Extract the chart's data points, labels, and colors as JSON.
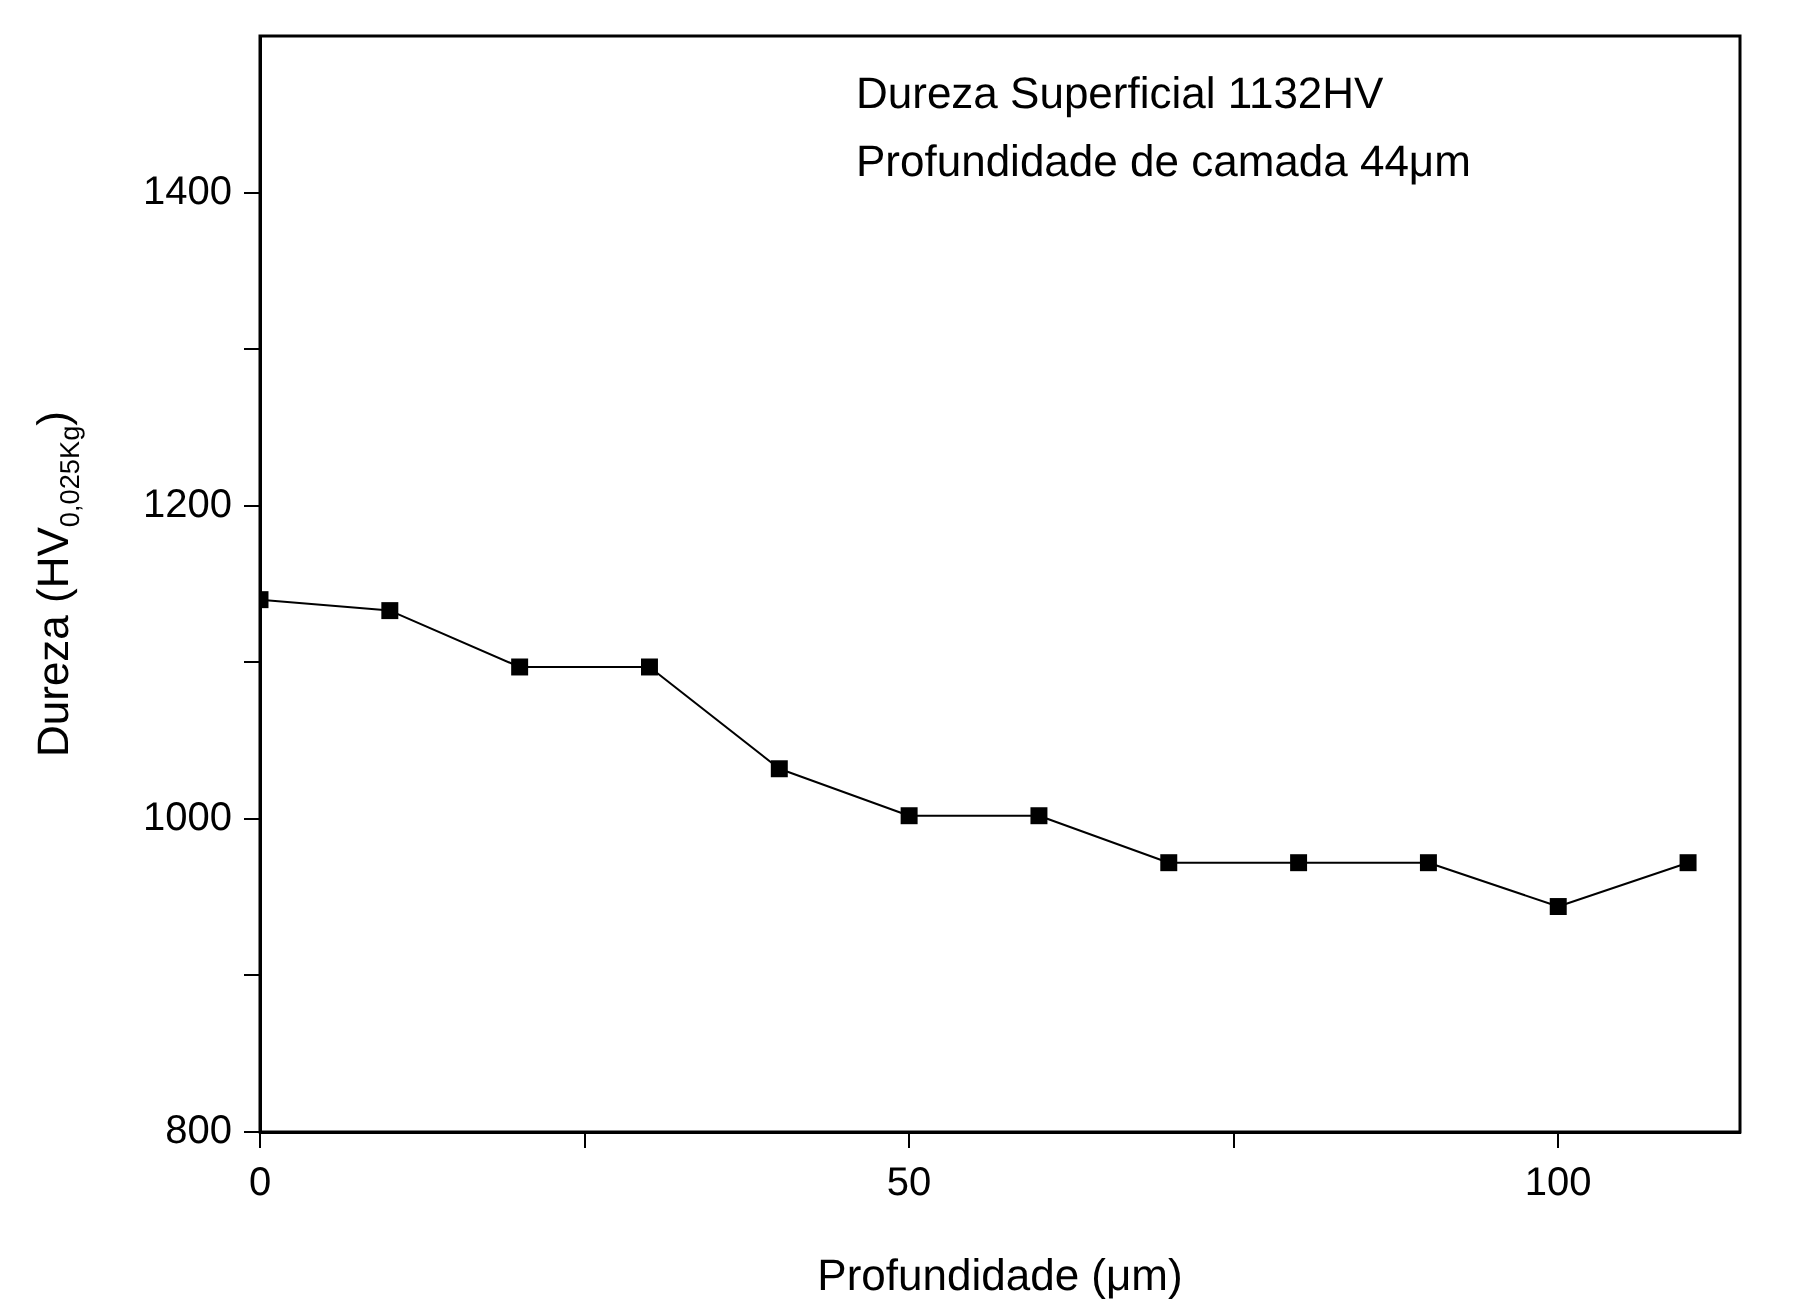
{
  "chart_data": {
    "type": "line",
    "xlabel": "Profundidade (μm)",
    "ylabel": "Dureza (HV$_{0,025Kg}$)",
    "annotations": [
      "Dureza Superficial 1132HV",
      "Profundidade de camada 44μm"
    ],
    "x": [
      0,
      10,
      20,
      30,
      40,
      50,
      60,
      70,
      80,
      90,
      100,
      110
    ],
    "series": [
      {
        "color": "#000000",
        "values": [
          1140,
          1133,
          1097,
          1097,
          1032,
          1002,
          1002,
          972,
          972,
          972,
          944,
          972
        ]
      }
    ],
    "xlim": [
      0,
      114
    ],
    "xticks": [
      0,
      {
        "value": 25,
        "label": null
      },
      50,
      {
        "value": 75,
        "label": null
      },
      100
    ],
    "ylim": [
      800,
      1500
    ],
    "yticks": [
      800,
      {
        "value": 900,
        "label": null
      },
      1000,
      {
        "value": 1100,
        "label": null
      },
      1200,
      {
        "value": 1300,
        "label": null
      },
      1400
    ],
    "marker": "square",
    "line_style": "solid",
    "grid": false,
    "legend": false
  }
}
